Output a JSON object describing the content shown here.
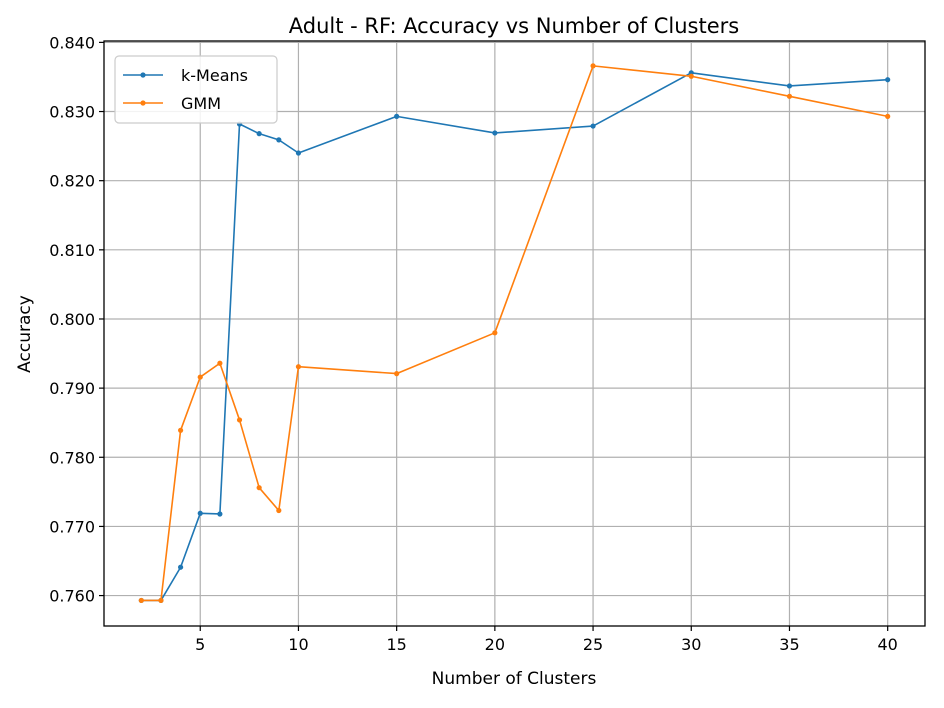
{
  "chart_data": {
    "type": "line",
    "title": "Adult - RF: Accuracy vs Number of Clusters",
    "xlabel": "Number of Clusters",
    "ylabel": "Accuracy",
    "xlim": [
      0.1,
      41.9
    ],
    "ylim": [
      0.7556,
      0.8402
    ],
    "xticks": [
      5,
      10,
      15,
      20,
      25,
      30,
      35,
      40
    ],
    "yticks": [
      0.76,
      0.77,
      0.78,
      0.79,
      0.8,
      0.81,
      0.82,
      0.83,
      0.84
    ],
    "ytick_labels": [
      "0.760",
      "0.770",
      "0.780",
      "0.790",
      "0.800",
      "0.810",
      "0.820",
      "0.830",
      "0.840"
    ],
    "grid": true,
    "legend_position": "top-left",
    "series": [
      {
        "name": "k-Means",
        "color": "#1f77b4",
        "marker": "circle",
        "x": [
          2,
          3,
          4,
          5,
          6,
          7,
          8,
          9,
          10,
          15,
          20,
          25,
          30,
          35,
          40
        ],
        "y": [
          0.7593,
          0.7593,
          0.7641,
          0.7719,
          0.7718,
          0.8282,
          0.8268,
          0.8259,
          0.824,
          0.8293,
          0.8269,
          0.8279,
          0.8356,
          0.8337,
          0.8346
        ]
      },
      {
        "name": "GMM",
        "color": "#ff7f0e",
        "marker": "circle",
        "x": [
          2,
          3,
          4,
          5,
          6,
          7,
          8,
          9,
          10,
          15,
          20,
          25,
          30,
          35,
          40
        ],
        "y": [
          0.7593,
          0.7593,
          0.7839,
          0.7916,
          0.7936,
          0.7854,
          0.7756,
          0.7723,
          0.7931,
          0.7921,
          0.798,
          0.8366,
          0.8351,
          0.8322,
          0.8293
        ]
      }
    ]
  }
}
